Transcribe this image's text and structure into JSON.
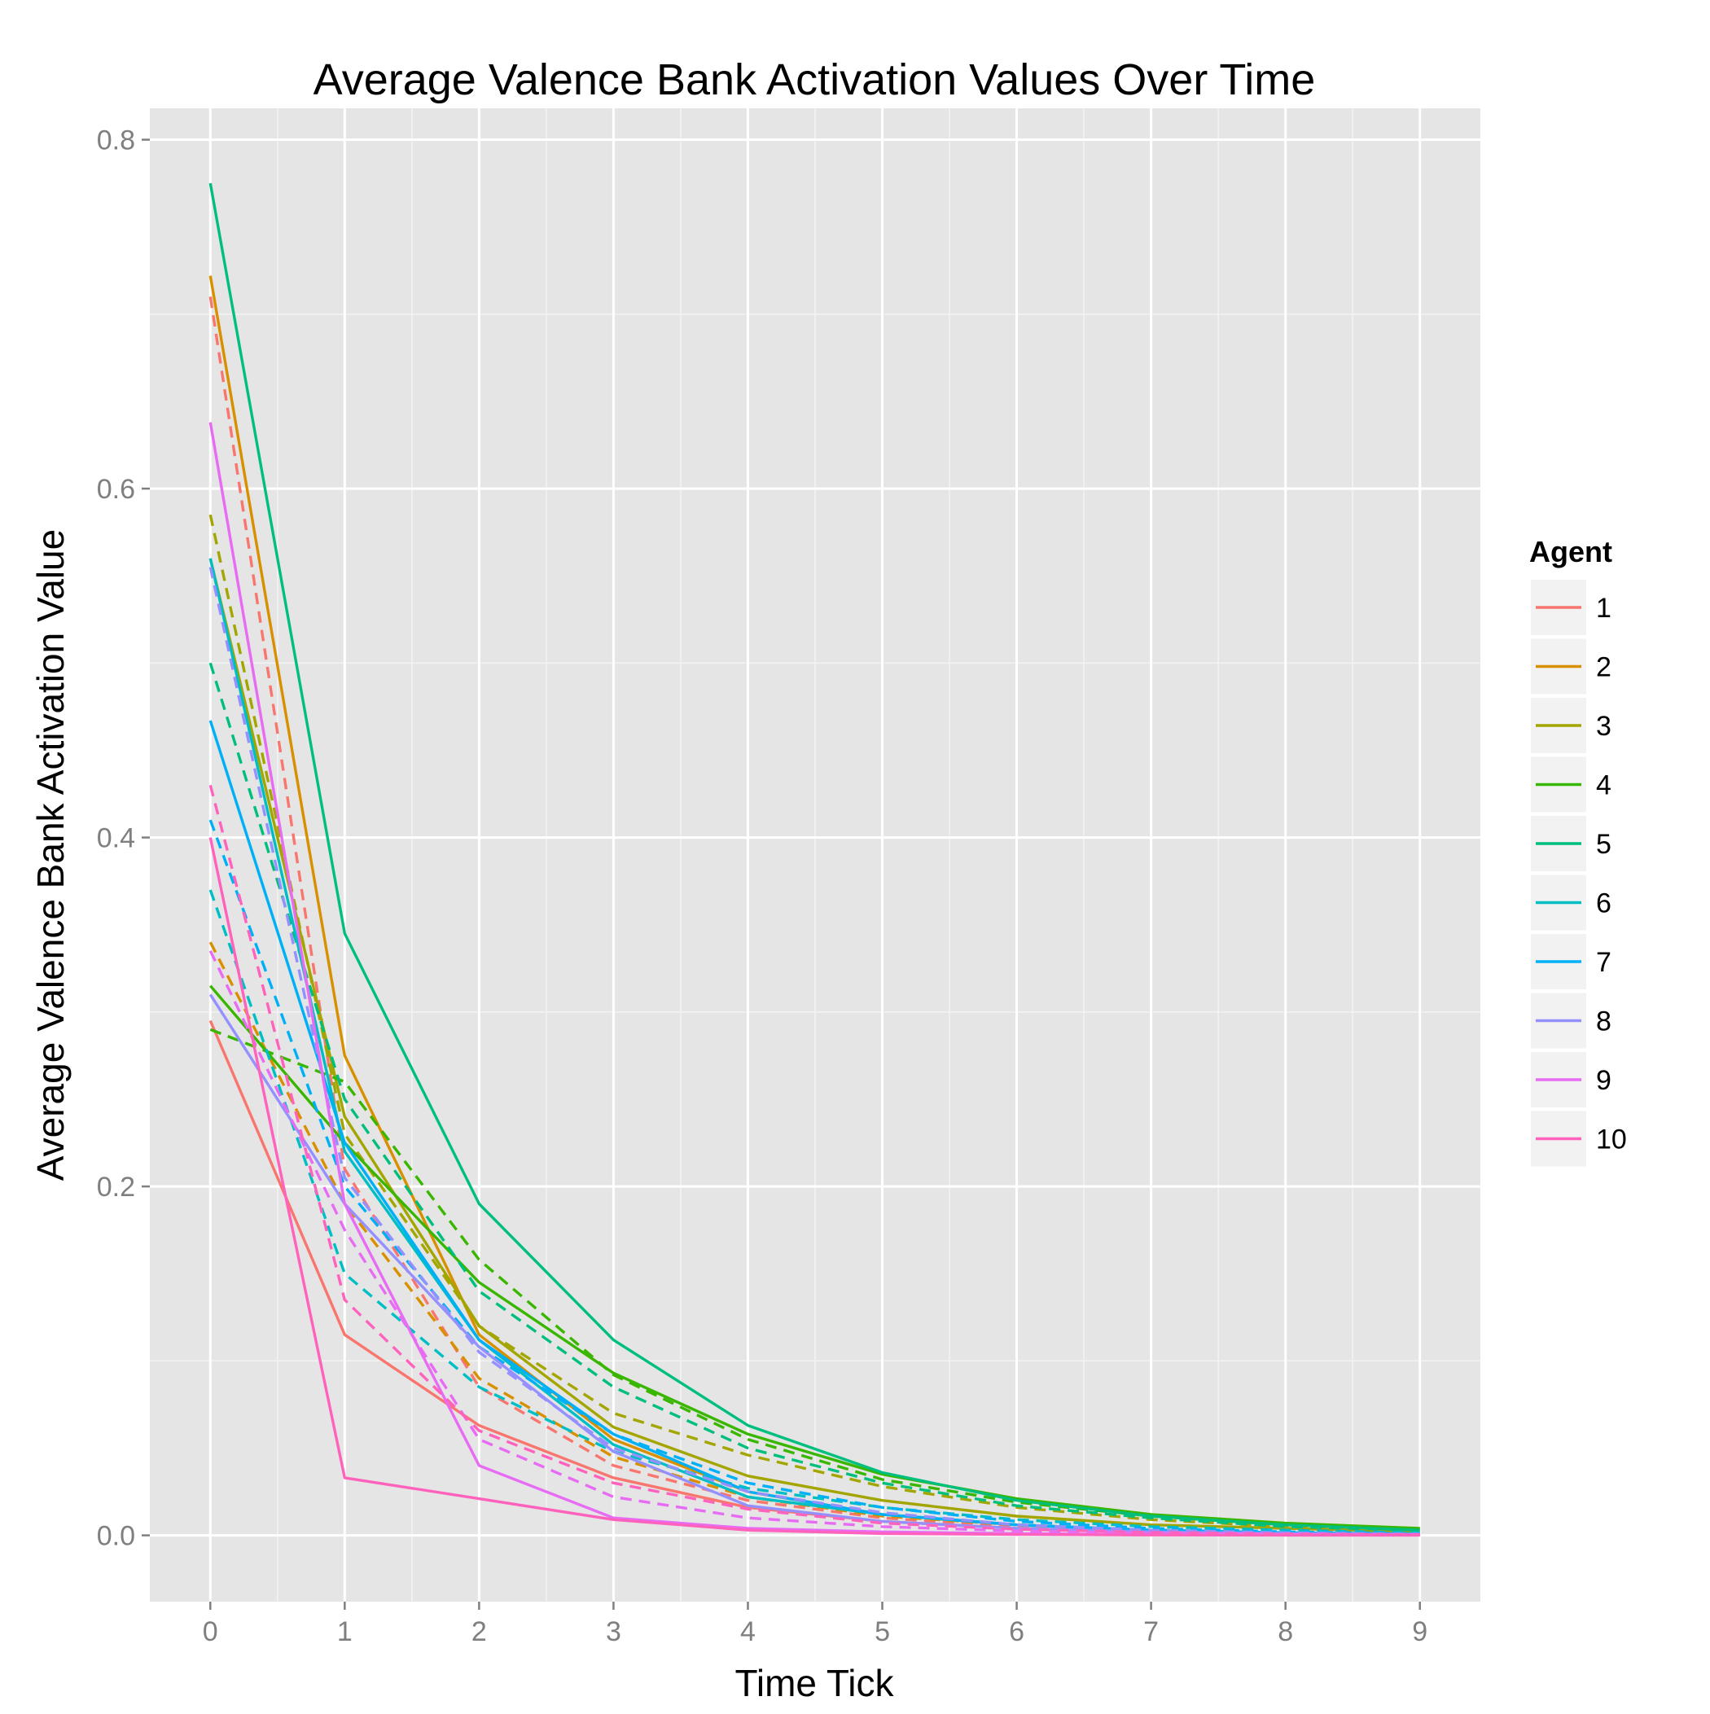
{
  "chart_data": {
    "type": "line",
    "title": "Average Valence Bank Activation Values Over Time",
    "xlabel": "Time Tick",
    "ylabel": "Average Valence Bank Activation Value",
    "x": [
      0,
      1,
      2,
      3,
      4,
      5,
      6,
      7,
      8,
      9
    ],
    "x_ticks": [
      "0",
      "1",
      "2",
      "3",
      "4",
      "5",
      "6",
      "7",
      "8",
      "9"
    ],
    "y_ticks": [
      "0.0",
      "0.2",
      "0.4",
      "0.6",
      "0.8"
    ],
    "xlim": [
      -0.45,
      9.45
    ],
    "ylim": [
      -0.038,
      0.818
    ],
    "grid": true,
    "legend": {
      "title": "Agent",
      "position": "right"
    },
    "series": [
      {
        "name": "1",
        "color": "#F8766D",
        "style": "solid",
        "values": [
          0.295,
          0.115,
          0.063,
          0.033,
          0.016,
          0.008,
          0.004,
          0.002,
          0.001,
          0.0005
        ]
      },
      {
        "name": "1",
        "color": "#F8766D",
        "style": "dashed",
        "values": [
          0.71,
          0.21,
          0.085,
          0.04,
          0.02,
          0.01,
          0.005,
          0.003,
          0.0015,
          0.0008
        ],
        "legend": false
      },
      {
        "name": "2",
        "color": "#D89000",
        "style": "solid",
        "values": [
          0.722,
          0.275,
          0.115,
          0.055,
          0.025,
          0.012,
          0.006,
          0.003,
          0.0015,
          0.0008
        ]
      },
      {
        "name": "2",
        "color": "#D89000",
        "style": "dashed",
        "values": [
          0.34,
          0.19,
          0.09,
          0.045,
          0.022,
          0.011,
          0.006,
          0.003,
          0.0015,
          0.0008
        ],
        "legend": false
      },
      {
        "name": "3",
        "color": "#A3A500",
        "style": "solid",
        "values": [
          0.56,
          0.24,
          0.12,
          0.062,
          0.034,
          0.02,
          0.011,
          0.006,
          0.004,
          0.002
        ]
      },
      {
        "name": "3",
        "color": "#A3A500",
        "style": "dashed",
        "values": [
          0.585,
          0.23,
          0.12,
          0.07,
          0.046,
          0.028,
          0.016,
          0.009,
          0.005,
          0.0025
        ],
        "legend": false
      },
      {
        "name": "4",
        "color": "#39B600",
        "style": "solid",
        "values": [
          0.315,
          0.225,
          0.145,
          0.093,
          0.058,
          0.035,
          0.021,
          0.012,
          0.007,
          0.004
        ]
      },
      {
        "name": "4",
        "color": "#39B600",
        "style": "dashed",
        "values": [
          0.29,
          0.26,
          0.158,
          0.092,
          0.055,
          0.032,
          0.019,
          0.011,
          0.006,
          0.0035
        ],
        "legend": false
      },
      {
        "name": "5",
        "color": "#00BF7D",
        "style": "solid",
        "values": [
          0.775,
          0.345,
          0.19,
          0.112,
          0.063,
          0.036,
          0.02,
          0.011,
          0.006,
          0.003
        ]
      },
      {
        "name": "5",
        "color": "#00BF7D",
        "style": "dashed",
        "values": [
          0.5,
          0.25,
          0.14,
          0.085,
          0.05,
          0.03,
          0.017,
          0.01,
          0.005,
          0.003
        ],
        "legend": false
      },
      {
        "name": "6",
        "color": "#00BFC4",
        "style": "solid",
        "values": [
          0.56,
          0.22,
          0.112,
          0.052,
          0.022,
          0.012,
          0.006,
          0.003,
          0.0015,
          0.0008
        ]
      },
      {
        "name": "6",
        "color": "#00BFC4",
        "style": "dashed",
        "values": [
          0.37,
          0.15,
          0.085,
          0.048,
          0.027,
          0.016,
          0.009,
          0.005,
          0.003,
          0.0015
        ],
        "legend": false
      },
      {
        "name": "7",
        "color": "#00B0F6",
        "style": "solid",
        "values": [
          0.467,
          0.225,
          0.112,
          0.058,
          0.025,
          0.012,
          0.006,
          0.003,
          0.0015,
          0.0008
        ]
      },
      {
        "name": "7",
        "color": "#00B0F6",
        "style": "dashed",
        "values": [
          0.41,
          0.2,
          0.108,
          0.058,
          0.03,
          0.016,
          0.008,
          0.004,
          0.002,
          0.001
        ],
        "legend": false
      },
      {
        "name": "8",
        "color": "#9590FF",
        "style": "solid",
        "values": [
          0.31,
          0.19,
          0.108,
          0.048,
          0.017,
          0.008,
          0.004,
          0.002,
          0.001,
          0.0005
        ]
      },
      {
        "name": "8",
        "color": "#9590FF",
        "style": "dashed",
        "values": [
          0.555,
          0.205,
          0.105,
          0.05,
          0.025,
          0.013,
          0.006,
          0.003,
          0.0015,
          0.0008
        ],
        "legend": false
      },
      {
        "name": "9",
        "color": "#E76BF3",
        "style": "solid",
        "values": [
          0.638,
          0.19,
          0.04,
          0.01,
          0.004,
          0.002,
          0.001,
          0.0005,
          0.0003,
          0.0002
        ]
      },
      {
        "name": "9",
        "color": "#E76BF3",
        "style": "dashed",
        "values": [
          0.335,
          0.175,
          0.055,
          0.022,
          0.01,
          0.005,
          0.0025,
          0.0012,
          0.0006,
          0.0003
        ],
        "legend": false
      },
      {
        "name": "10",
        "color": "#FF62BC",
        "style": "solid",
        "values": [
          0.4,
          0.033,
          0.021,
          0.009,
          0.003,
          0.001,
          0.0005,
          0.0002,
          0.0001,
          0.0001
        ]
      },
      {
        "name": "10",
        "color": "#FF62BC",
        "style": "dashed",
        "values": [
          0.43,
          0.135,
          0.06,
          0.03,
          0.015,
          0.007,
          0.0035,
          0.0017,
          0.0008,
          0.0004
        ],
        "legend": false
      }
    ]
  }
}
